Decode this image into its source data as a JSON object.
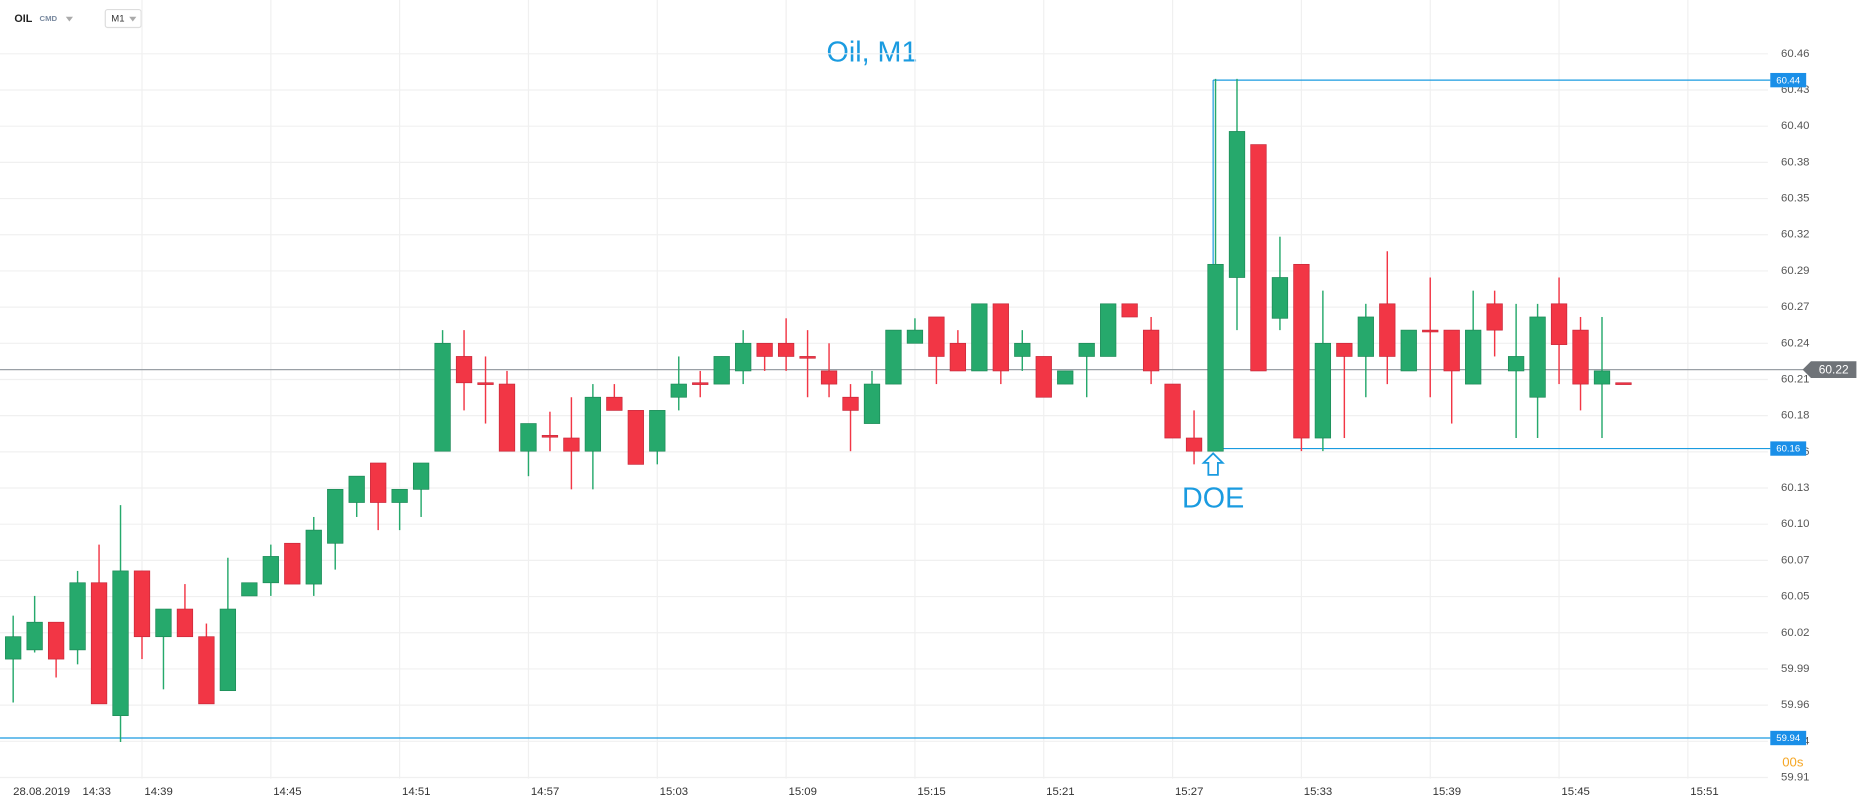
{
  "header": {
    "symbol": "OIL",
    "market": "CMD",
    "interval": "M1"
  },
  "chart_data": {
    "type": "candlestick",
    "title": "Oil, M1",
    "date_label": "28.08.2019",
    "categories": [
      "14:33",
      null,
      null,
      null,
      null,
      null,
      "14:39",
      null,
      null,
      null,
      null,
      null,
      "14:45",
      null,
      null,
      null,
      null,
      null,
      "14:51",
      null,
      null,
      null,
      null,
      null,
      "14:57",
      null,
      null,
      null,
      null,
      null,
      "15:03",
      null,
      null,
      null,
      null,
      null,
      "15:09",
      null,
      null,
      null,
      null,
      null,
      "15:15",
      null,
      null,
      null,
      null,
      null,
      "15:21",
      null,
      null,
      null,
      null,
      null,
      "15:27",
      null,
      null,
      null,
      null,
      null,
      "15:33",
      null,
      null,
      null,
      null,
      null,
      "15:39",
      null,
      null,
      null,
      null,
      null,
      "15:45",
      null,
      null,
      null,
      null,
      null,
      "15:51"
    ],
    "open": [
      60.0,
      60.007,
      60.028,
      60.007,
      60.058,
      59.957,
      60.067,
      60.017,
      60.038,
      60.017,
      59.976,
      60.048,
      60.058,
      60.088,
      60.057,
      60.088,
      60.119,
      60.149,
      60.119,
      60.129,
      60.158,
      60.23,
      60.21,
      60.209,
      60.158,
      60.17,
      60.168,
      60.158,
      60.199,
      60.189,
      60.158,
      60.199,
      60.21,
      60.209,
      60.219,
      60.24,
      60.24,
      60.23,
      60.219,
      60.199,
      60.179,
      60.209,
      60.24,
      60.26,
      60.24,
      60.219,
      60.27,
      60.23,
      60.23,
      60.209,
      60.23,
      60.23,
      60.27,
      60.25,
      60.209,
      60.168,
      60.158,
      60.29,
      60.391,
      60.259,
      60.3,
      60.168,
      60.24,
      60.23,
      60.27,
      60.219,
      60.25,
      60.25,
      60.209,
      60.27,
      60.219,
      60.199,
      60.27,
      60.25,
      60.209,
      60.21,
      null,
      null,
      null
    ],
    "high": [
      60.033,
      60.048,
      60.028,
      60.067,
      60.087,
      60.117,
      60.067,
      60.038,
      60.057,
      60.027,
      60.077,
      60.058,
      60.087,
      60.088,
      60.108,
      60.129,
      60.139,
      60.149,
      60.129,
      60.149,
      60.25,
      60.25,
      60.23,
      60.219,
      60.179,
      60.188,
      60.199,
      60.209,
      60.209,
      60.189,
      60.189,
      60.23,
      60.219,
      60.23,
      60.25,
      60.24,
      60.259,
      60.25,
      60.24,
      60.209,
      60.219,
      60.25,
      60.259,
      60.26,
      60.25,
      60.27,
      60.27,
      60.25,
      60.23,
      60.219,
      60.24,
      60.27,
      60.27,
      60.26,
      60.209,
      60.189,
      60.441,
      60.441,
      60.391,
      60.321,
      60.3,
      60.28,
      60.24,
      60.27,
      60.31,
      60.25,
      60.29,
      60.25,
      60.28,
      60.28,
      60.27,
      60.27,
      60.29,
      60.26,
      60.26,
      60.21,
      null,
      null,
      null
    ],
    "low": [
      59.967,
      60.005,
      59.986,
      59.996,
      59.966,
      59.937,
      60.0,
      59.977,
      60.017,
      59.966,
      59.976,
      60.048,
      60.048,
      60.057,
      60.048,
      60.068,
      60.108,
      60.098,
      60.098,
      60.108,
      60.158,
      60.189,
      60.179,
      60.158,
      60.139,
      60.158,
      60.129,
      60.129,
      60.189,
      60.148,
      60.148,
      60.189,
      60.199,
      60.209,
      60.209,
      60.219,
      60.219,
      60.199,
      60.199,
      60.158,
      60.179,
      60.209,
      60.24,
      60.209,
      60.219,
      60.219,
      60.209,
      60.219,
      60.199,
      60.209,
      60.199,
      60.23,
      60.26,
      60.209,
      60.168,
      60.148,
      60.158,
      60.25,
      60.219,
      60.25,
      60.158,
      60.158,
      60.168,
      60.199,
      60.209,
      60.219,
      60.199,
      60.179,
      60.209,
      60.23,
      60.168,
      60.168,
      60.209,
      60.189,
      60.168,
      60.209,
      null,
      null,
      null
    ],
    "close": [
      60.017,
      60.028,
      60.0,
      60.058,
      59.966,
      60.067,
      60.017,
      60.038,
      60.017,
      59.966,
      60.038,
      60.058,
      60.078,
      60.057,
      60.098,
      60.129,
      60.139,
      60.119,
      60.129,
      60.149,
      60.24,
      60.21,
      60.21,
      60.158,
      60.179,
      60.17,
      60.158,
      60.199,
      60.189,
      60.148,
      60.189,
      60.209,
      60.209,
      60.23,
      60.24,
      60.23,
      60.23,
      60.229,
      60.209,
      60.189,
      60.209,
      60.25,
      60.25,
      60.23,
      60.219,
      60.27,
      60.219,
      60.24,
      60.199,
      60.219,
      60.24,
      60.27,
      60.26,
      60.219,
      60.168,
      60.158,
      60.3,
      60.401,
      60.219,
      60.29,
      60.168,
      60.24,
      60.23,
      60.26,
      60.23,
      60.25,
      60.249,
      60.219,
      60.25,
      60.25,
      60.23,
      60.26,
      60.239,
      60.209,
      60.219,
      60.209,
      null,
      null,
      null
    ],
    "up_color": "#26a96c",
    "down_color": "#f23645",
    "ylim": [
      59.9,
      60.49
    ],
    "yticks": [
      60.46,
      {
        "value": 60.4325,
        "label": "60.43"
      },
      {
        "value": 60.405,
        "label": "60.40"
      },
      {
        "value": 60.3775,
        "label": "60.38"
      },
      60.35,
      {
        "value": 60.3225,
        "label": "60.32"
      },
      {
        "value": 60.295,
        "label": "60.29"
      },
      {
        "value": 60.2675,
        "label": "60.27"
      },
      60.24,
      {
        "value": 60.2125,
        "label": "60.21"
      },
      {
        "value": 60.185,
        "label": "60.18"
      },
      {
        "value": 60.1575,
        "label": "60.16"
      },
      60.13,
      {
        "value": 60.1025,
        "label": "60.10"
      },
      {
        "value": 60.075,
        "label": "60.07"
      },
      {
        "value": 60.0475,
        "label": "60.05"
      },
      60.02,
      {
        "value": 59.9925,
        "label": "59.99"
      },
      {
        "value": 59.965,
        "label": "59.96"
      },
      {
        "value": 59.9375,
        "label": "59.94"
      },
      59.91
    ],
    "grid": true,
    "levels": [
      60.44,
      60.16,
      59.94
    ],
    "last_price": 60.22,
    "annotation": "DOE",
    "countdown": "00s"
  }
}
